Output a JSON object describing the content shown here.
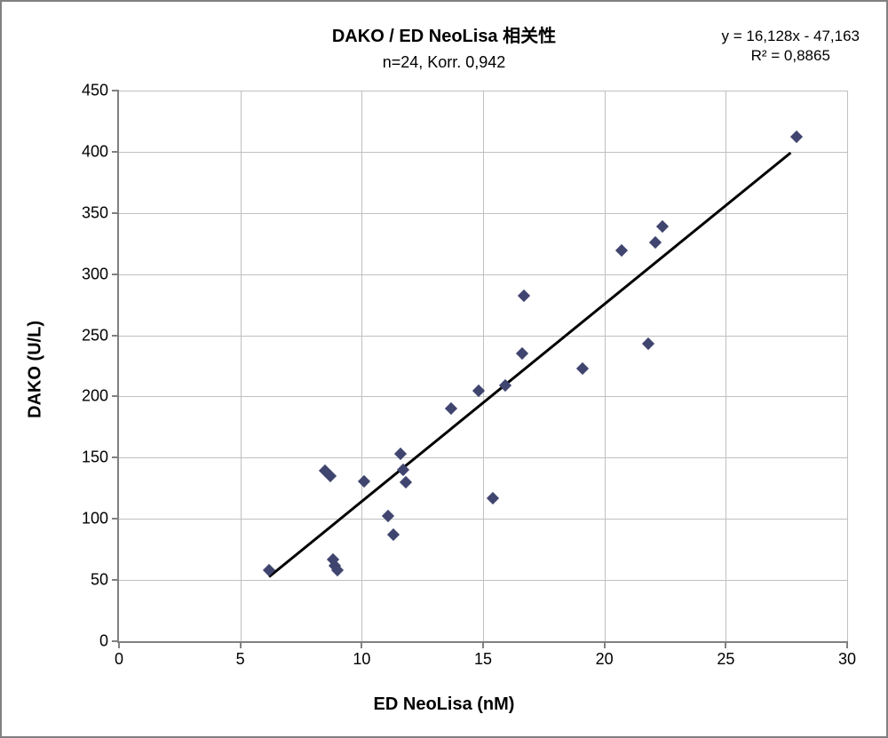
{
  "chart": {
    "type": "scatter",
    "title": "DAKO / ED NeoLisa 相关性",
    "title_fontsize": 20,
    "subtitle": "n=24, Korr. 0,942",
    "subtitle_fontsize": 18,
    "equation_line1": "y = 16,128x - 47,163",
    "equation_line2": "R² = 0,8865",
    "equation_fontsize": 17,
    "xlabel": "ED NeoLisa (nM)",
    "ylabel": "DAKO (U/L)",
    "axis_label_fontsize": 20,
    "tick_fontsize": 18,
    "xlim": [
      0,
      30
    ],
    "ylim": [
      0,
      450
    ],
    "xtick_step": 5,
    "ytick_step": 50,
    "background_color": "#ffffff",
    "grid_color": "#c0c0c0",
    "axis_color": "#808080",
    "marker_color": "#40456f",
    "marker_size": 10,
    "marker_style": "diamond",
    "trend_color": "#000000",
    "trend_width": 3,
    "trend_x1": 6.2,
    "trend_x2": 27.7,
    "x_ticks": [
      0,
      5,
      10,
      15,
      20,
      25,
      30
    ],
    "y_ticks": [
      0,
      50,
      100,
      150,
      200,
      250,
      300,
      350,
      400,
      450
    ],
    "points": [
      {
        "x": 6.2,
        "y": 58
      },
      {
        "x": 8.5,
        "y": 139
      },
      {
        "x": 8.7,
        "y": 135
      },
      {
        "x": 8.8,
        "y": 67
      },
      {
        "x": 8.9,
        "y": 62
      },
      {
        "x": 9.0,
        "y": 58
      },
      {
        "x": 10.1,
        "y": 131
      },
      {
        "x": 11.1,
        "y": 102
      },
      {
        "x": 11.3,
        "y": 87
      },
      {
        "x": 11.6,
        "y": 153
      },
      {
        "x": 11.7,
        "y": 140
      },
      {
        "x": 11.8,
        "y": 130
      },
      {
        "x": 13.7,
        "y": 190
      },
      {
        "x": 14.8,
        "y": 205
      },
      {
        "x": 15.4,
        "y": 117
      },
      {
        "x": 15.9,
        "y": 209
      },
      {
        "x": 16.6,
        "y": 235
      },
      {
        "x": 16.7,
        "y": 282
      },
      {
        "x": 19.1,
        "y": 223
      },
      {
        "x": 20.7,
        "y": 319
      },
      {
        "x": 21.8,
        "y": 243
      },
      {
        "x": 22.1,
        "y": 326
      },
      {
        "x": 22.4,
        "y": 339
      },
      {
        "x": 27.9,
        "y": 412
      }
    ]
  }
}
